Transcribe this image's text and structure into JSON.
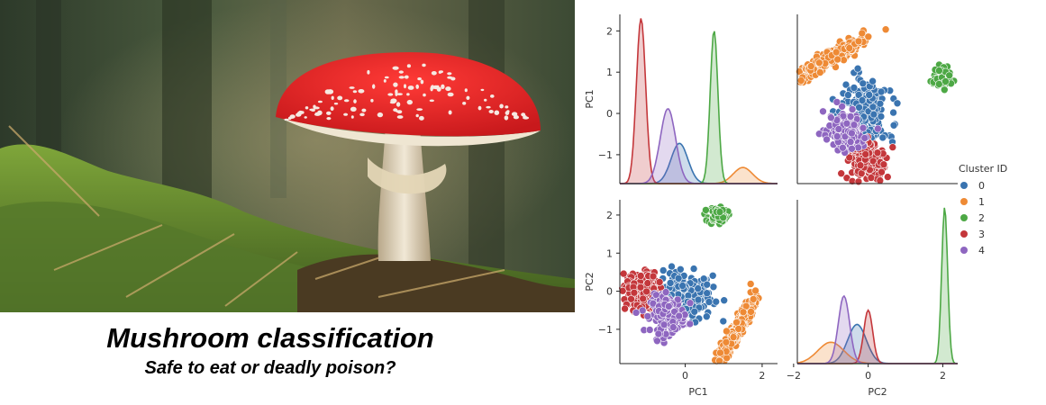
{
  "title": "Mushroom classification",
  "subtitle": "Safe to eat or deadly poison?",
  "chart_data": {
    "type": "scatter",
    "kind": "pairplot",
    "variables": [
      "PC1",
      "PC2"
    ],
    "hue_label": "Cluster ID",
    "legend_position": "right",
    "grid": false,
    "axis_ranges": {
      "PC1": [
        -1.7,
        2.4
      ],
      "PC2": [
        -1.9,
        2.4
      ]
    },
    "ticks": {
      "PC1": [
        -1,
        0,
        1,
        2
      ],
      "PC2": [
        -1,
        0,
        1,
        2
      ]
    },
    "tick_labels": {
      "diag_y": [
        "2",
        "1",
        "0",
        "−1"
      ],
      "bottom_y": [
        "2",
        "1",
        "0",
        "−1"
      ],
      "bottom_left_x": [
        "0",
        "2"
      ],
      "bottom_right_x": [
        "−2",
        "0",
        "2"
      ]
    },
    "series": [
      {
        "name": "0",
        "color": "#3a74b0",
        "center": [
          -0.1,
          -0.15
        ],
        "spread": [
          0.4,
          0.32
        ],
        "count": 260,
        "kde_pc1": {
          "mode": -0.15,
          "sd": 0.22,
          "peak": 0.5
        },
        "kde_pc2": {
          "mode": -0.3,
          "sd": 0.25,
          "peak": 0.55
        }
      },
      {
        "name": "1",
        "color": "#ee8a35",
        "center": [
          1.35,
          -1.0
        ],
        "spread": [
          0.3,
          0.45
        ],
        "count": 280,
        "kde_pc1": {
          "mode": 1.5,
          "sd": 0.25,
          "peak": 0.2
        },
        "kde_pc2": {
          "mode": -1.0,
          "sd": 0.35,
          "peak": 0.3
        }
      },
      {
        "name": "2",
        "color": "#4da845",
        "center": [
          0.85,
          2.0
        ],
        "spread": [
          0.12,
          0.12
        ],
        "count": 70,
        "kde_pc1": {
          "mode": 0.75,
          "sd": 0.1,
          "peak": 1.9
        },
        "kde_pc2": {
          "mode": 2.05,
          "sd": 0.08,
          "peak": 2.2
        }
      },
      {
        "name": "3",
        "color": "#c4373b",
        "center": [
          -1.2,
          0.0
        ],
        "spread": [
          0.24,
          0.24
        ],
        "count": 220,
        "kde_pc1": {
          "mode": -1.15,
          "sd": 0.12,
          "peak": 2.05
        },
        "kde_pc2": {
          "mode": 0.0,
          "sd": 0.12,
          "peak": 0.75
        }
      },
      {
        "name": "4",
        "color": "#8e66c0",
        "center": [
          -0.45,
          -0.6
        ],
        "spread": [
          0.22,
          0.24
        ],
        "count": 180,
        "kde_pc1": {
          "mode": -0.45,
          "sd": 0.2,
          "peak": 0.93
        },
        "kde_pc2": {
          "mode": -0.65,
          "sd": 0.15,
          "peak": 0.95
        }
      }
    ]
  }
}
